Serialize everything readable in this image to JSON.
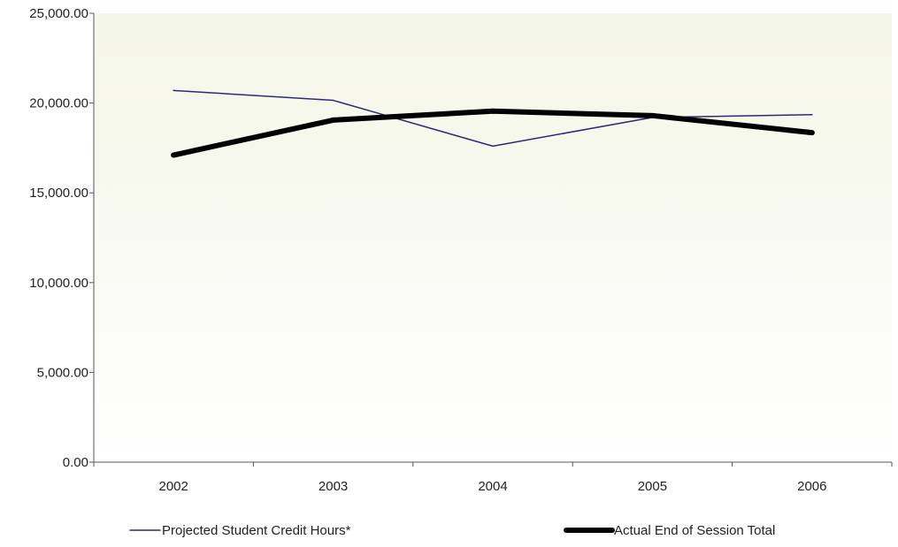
{
  "chart_data": {
    "type": "line",
    "title": "",
    "xlabel": "",
    "ylabel": "",
    "categories": [
      "2002",
      "2003",
      "2004",
      "2005",
      "2006"
    ],
    "ylim": [
      0,
      25000
    ],
    "yticks": [
      0,
      5000,
      10000,
      15000,
      20000,
      25000
    ],
    "ytick_labels": [
      "0.00",
      "5,000.00",
      "10,000.00",
      "15,000.00",
      "20,000.00",
      "25,000.00"
    ],
    "grid": false,
    "legend_position": "bottom",
    "series": [
      {
        "name": "Projected Student Credit Hours*",
        "values": [
          20700,
          20150,
          17600,
          19200,
          19350
        ],
        "color": "#2e2a7a",
        "style": "thin"
      },
      {
        "name": "Actual End of Session Total",
        "values": [
          17100,
          19050,
          19550,
          19300,
          18350
        ],
        "color": "#000000",
        "style": "thick"
      }
    ],
    "plot_background": "#f7f8ee"
  }
}
